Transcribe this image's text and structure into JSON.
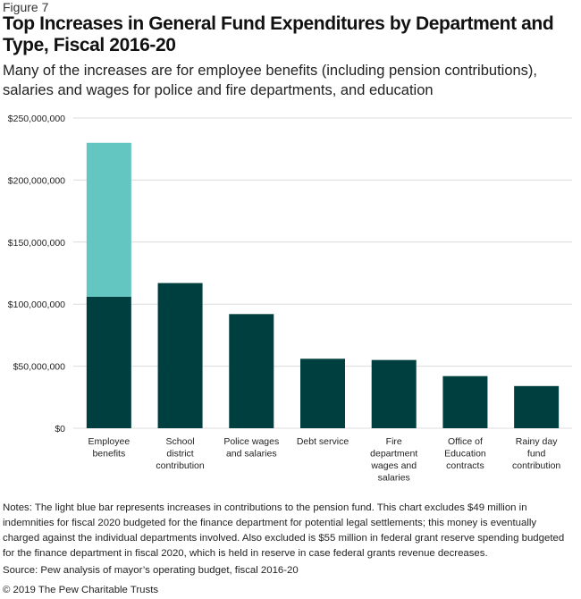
{
  "figure_label": "Figure 7",
  "chart_data": {
    "type": "bar",
    "stacked": true,
    "title": "Top Increases in General Fund Expenditures by Department and Type, Fiscal 2016-20",
    "subtitle": "Many of the increases are for employee benefits (including pension contributions), salaries and wages for police and fire departments, and education",
    "categories": [
      [
        "Employee",
        "benefits"
      ],
      [
        "School",
        "district",
        "contribution"
      ],
      [
        "Police wages",
        "and salaries"
      ],
      [
        "Debt service"
      ],
      [
        "Fire",
        "department",
        "wages and",
        "salaries"
      ],
      [
        "Office of",
        "Education",
        "contracts"
      ],
      [
        "Rainy day",
        "fund",
        "contribution"
      ]
    ],
    "series": [
      {
        "values": [
          106000000,
          117000000,
          92000000,
          56000000,
          55000000,
          42000000,
          34000000
        ],
        "color": "#003f3f"
      },
      {
        "values": [
          124000000,
          0,
          0,
          0,
          0,
          0,
          0
        ],
        "color": "#63c6c0"
      }
    ],
    "ylim": [
      0,
      250000000
    ],
    "yticks": [
      0,
      50000000,
      100000000,
      150000000,
      200000000,
      250000000
    ],
    "ytick_labels": [
      "$0",
      "$50,000,000",
      "$100,000,000",
      "$150,000,000",
      "$200,000,000",
      "$250,000,000"
    ],
    "grid": true,
    "grid_color": "#dcdcdc"
  },
  "notes": "Notes: The light blue bar represents increases in contributions to the pension fund. This chart excludes $49 million in indemnities for fiscal 2020 budgeted for the finance department for potential legal settlements; this money is eventually charged against the individual departments involved. Also excluded is $55 million in federal grant reserve spending budgeted for the finance department in fiscal 2020, which is held in reserve in case federal grants revenue decreases.",
  "source": "Source: Pew analysis of mayor’s operating budget, fiscal 2016-20",
  "copyright": "© 2019 The Pew Charitable Trusts"
}
